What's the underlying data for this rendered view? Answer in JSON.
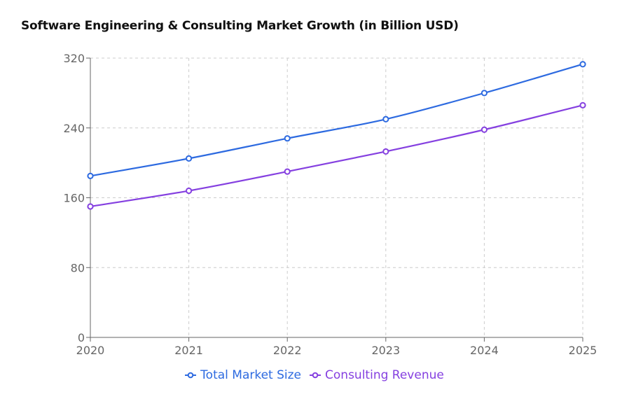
{
  "chart_data": {
    "type": "line",
    "title": "Software Engineering & Consulting Market Growth (in Billion USD)",
    "xlabel": "",
    "ylabel": "",
    "categories": [
      "2020",
      "2021",
      "2022",
      "2023",
      "2024",
      "2025"
    ],
    "ylim": [
      0,
      320
    ],
    "yticks": [
      0,
      80,
      160,
      240,
      320
    ],
    "grid": true,
    "legend_position": "bottom",
    "series": [
      {
        "name": "Total Market Size",
        "color": "#2d6ae0",
        "values": [
          185,
          205,
          228,
          250,
          280,
          313
        ]
      },
      {
        "name": "Consulting Revenue",
        "color": "#8540e0",
        "values": [
          150,
          168,
          190,
          213,
          238,
          266
        ]
      }
    ]
  }
}
